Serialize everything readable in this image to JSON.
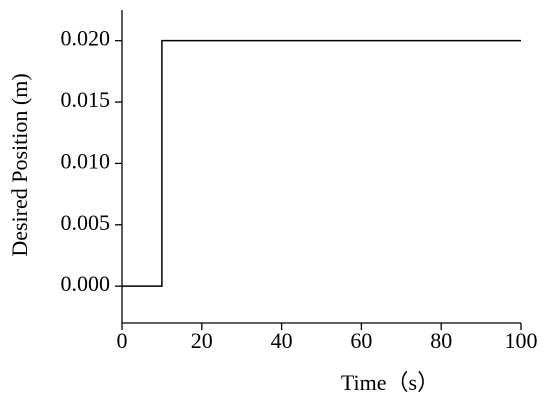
{
  "chart_data": {
    "type": "line",
    "xlabel": "Time（s）",
    "ylabel": "Desired Position (m)",
    "x": [
      0,
      10,
      10,
      100
    ],
    "series": [
      {
        "name": "Desired Position",
        "color": "#000000",
        "values": [
          0,
          0,
          0.02,
          0.02
        ]
      }
    ],
    "xlim": [
      0,
      100
    ],
    "xticks": [
      0,
      20,
      40,
      60,
      80,
      100
    ],
    "ylim": [
      -0.003,
      0.0225
    ],
    "yticks": [
      {
        "value": 0,
        "label": "0.000"
      },
      {
        "value": 0.005,
        "label": "0.005"
      },
      {
        "value": 0.01,
        "label": "0.010"
      },
      {
        "value": 0.015,
        "label": "0.015"
      },
      {
        "value": 0.02,
        "label": "0.020"
      }
    ],
    "grid": false
  }
}
